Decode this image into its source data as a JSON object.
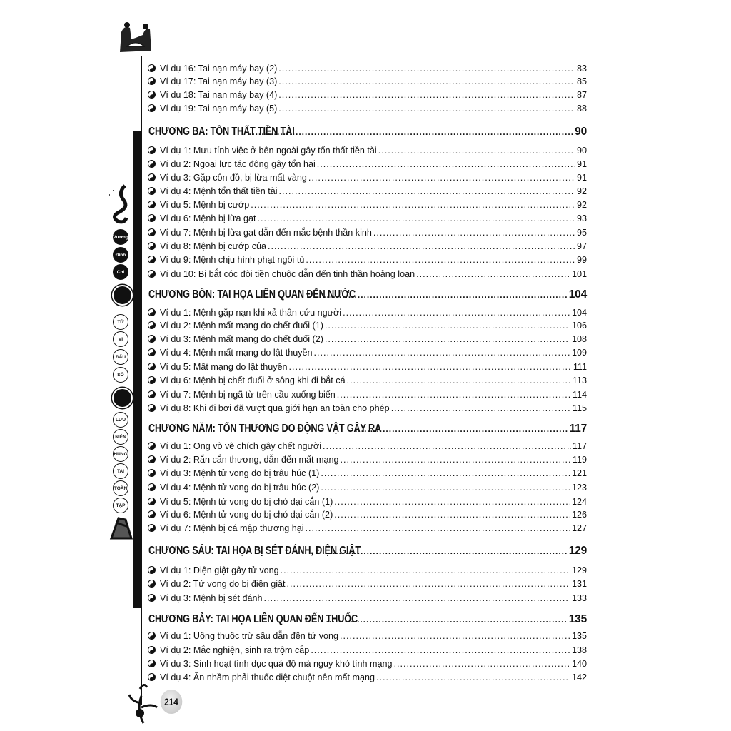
{
  "page_number": "214",
  "sidebar_labels": {
    "dark": [
      "Vương",
      "Đình",
      "Chi"
    ],
    "series_1": [
      "TỬ",
      "VI",
      "ĐẨU",
      "SỐ"
    ],
    "series_2": [
      "LƯU",
      "NIÊN",
      "HUNG",
      "TAI",
      "TOÀN",
      "TẬP"
    ]
  },
  "bullet_icon": "yin-yang-icon",
  "toc": [
    {
      "type": "item",
      "title": "Ví dụ 16: Tai nạn máy bay (2)",
      "page": "83"
    },
    {
      "type": "item",
      "title": "Ví dụ 17: Tai nạn máy bay (3)",
      "page": "85"
    },
    {
      "type": "item",
      "title": "Ví dụ 18: Tai nạn máy bay (4)",
      "page": "87"
    },
    {
      "type": "item",
      "title": "Ví dụ 19: Tai nạn máy bay (5)",
      "page": "88"
    },
    {
      "type": "head",
      "title": "CHƯƠNG BA: TỔN THẤT TIỀN TÀI",
      "page": "90"
    },
    {
      "type": "item",
      "title": "Ví dụ 1: Mưu tính việc ở bên ngoài gây tổn thất tiền tài",
      "page": "90"
    },
    {
      "type": "item",
      "title": "Ví dụ 2: Ngoại lực tác động gây tổn hại",
      "page": "91"
    },
    {
      "type": "item",
      "title": "Ví dụ 3: Gặp côn đồ, bị lừa mất vàng",
      "page": "91"
    },
    {
      "type": "item",
      "title": "Ví dụ 4: Mệnh tổn thất tiền tài",
      "page": "92"
    },
    {
      "type": "item",
      "title": "Ví dụ 5: Mệnh bị cướp",
      "page": "92"
    },
    {
      "type": "item",
      "title": "Ví dụ 6: Mệnh bị lừa gạt",
      "page": "93"
    },
    {
      "type": "item",
      "title": "Ví dụ 7: Mệnh bị lừa gạt dẫn đến mắc bệnh thần kinh",
      "page": "95"
    },
    {
      "type": "item",
      "title": "Ví dụ 8: Mệnh bị cướp của",
      "page": "97"
    },
    {
      "type": "item",
      "title": "Ví dụ 9: Mệnh chịu hình phạt ngồi tù",
      "page": "99"
    },
    {
      "type": "item",
      "title": "Ví dụ 10: Bị bắt cóc đòi tiền chuộc dẫn đến tinh thần hoảng loạn",
      "page": "101"
    },
    {
      "type": "head",
      "title": "CHƯƠNG BỐN: TAI HỌA LIÊN QUAN ĐẾN NƯỚC",
      "page": "104"
    },
    {
      "type": "item",
      "title": "Ví dụ 1: Mệnh gặp nạn khi xả thân cứu người",
      "page": "104"
    },
    {
      "type": "item",
      "title": "Ví dụ 2: Mệnh mất mạng do chết đuối (1)",
      "page": "106"
    },
    {
      "type": "item",
      "title": "Ví dụ 3: Mệnh mất mạng do chết đuối (2)",
      "page": "108"
    },
    {
      "type": "item",
      "title": "Ví dụ 4: Mệnh mất mạng do lật thuyền",
      "page": "109"
    },
    {
      "type": "item",
      "title": "Ví dụ 5: Mất mạng do lật thuyền",
      "page": "111"
    },
    {
      "type": "item",
      "title": "Ví dụ 6: Mệnh bị chết đuối ở sông khi đi bắt cá",
      "page": "113"
    },
    {
      "type": "item",
      "title": "Ví dụ 7: Mệnh bị ngã từ trên cầu xuống biển",
      "page": "114"
    },
    {
      "type": "item",
      "title": "Ví dụ 8: Khi đi bơi đã vượt qua giới hạn an toàn cho phép",
      "page": "115"
    },
    {
      "type": "head",
      "title": "CHƯƠNG NĂM: TỔN THƯƠNG DO ĐỘNG VẬT GÂY RA",
      "page": "117"
    },
    {
      "type": "item",
      "title": "Ví dụ 1: Ong vò vẽ chích gây chết người",
      "page": "117"
    },
    {
      "type": "item",
      "title": "Ví dụ 2: Rắn cắn thương, dẫn đến mất mạng",
      "page": "119"
    },
    {
      "type": "item",
      "title": "Ví dụ 3: Mệnh tử vong do bị trâu húc (1)",
      "page": "121"
    },
    {
      "type": "item",
      "title": "Ví dụ 4: Mệnh tử vong do bị trâu húc (2)",
      "page": "123"
    },
    {
      "type": "item",
      "title": "Ví dụ 5: Mệnh tử vong do bị chó dại cắn (1)",
      "page": "124"
    },
    {
      "type": "item",
      "title": "Ví dụ 6: Mệnh tử vong do bị chó dại cắn (2)",
      "page": "126"
    },
    {
      "type": "item",
      "title": "Ví dụ 7: Mệnh bị cá mập thương hại",
      "page": "127"
    },
    {
      "type": "head",
      "title": "CHƯƠNG SÁU: TAI HỌA BỊ SÉT ĐÁNH, ĐIỆN GIẬT",
      "page": "129"
    },
    {
      "type": "item",
      "title": "Ví dụ 1: Điện giật gây tử vong",
      "page": "129"
    },
    {
      "type": "item",
      "title": "Ví dụ 2: Tử vong do bị điện giật",
      "page": "131"
    },
    {
      "type": "item",
      "title": "Ví dụ 3: Mệnh bị sét đánh",
      "page": "133"
    },
    {
      "type": "head",
      "title": "CHƯƠNG BẢY: TAI HỌA LIÊN QUAN ĐẾN THUỐC",
      "page": "135"
    },
    {
      "type": "item",
      "title": "Ví dụ 1: Uống thuốc trừ sâu dẫn đến tử vong",
      "page": "135"
    },
    {
      "type": "item",
      "title": "Ví dụ 2: Mắc nghiện, sinh ra trộm cắp",
      "page": "138"
    },
    {
      "type": "item",
      "title": "Ví dụ 3: Sinh hoạt tình dục quá độ mà nguy khó tính mạng",
      "page": "140"
    },
    {
      "type": "item",
      "title": "Ví dụ 4: Ăn nhầm phải thuốc diệt chuột nên mất mạng",
      "page": "142"
    }
  ]
}
